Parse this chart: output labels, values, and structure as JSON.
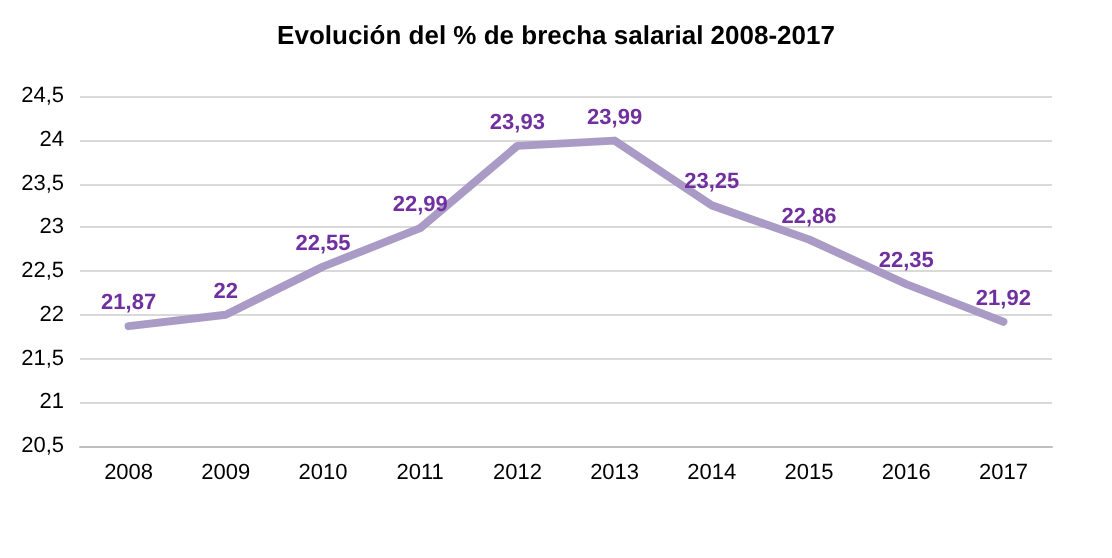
{
  "chart_data": {
    "type": "line",
    "title": "Evolución del % de brecha salarial 2008-2017",
    "categories": [
      "2008",
      "2009",
      "2010",
      "2011",
      "2012",
      "2013",
      "2014",
      "2015",
      "2016",
      "2017"
    ],
    "series": [
      {
        "color": "#a99bc6",
        "values": [
          21.87,
          22,
          22.55,
          22.99,
          23.93,
          23.99,
          23.25,
          22.86,
          22.35,
          21.92
        ],
        "value_labels": [
          "21,87",
          "22",
          "22,55",
          "22,99",
          "23,93",
          "23,99",
          "23,25",
          "22,86",
          "22,35",
          "21,92"
        ]
      }
    ],
    "ylim": [
      20.5,
      24.5
    ],
    "yticks": [
      {
        "value": 20.5,
        "label": "20,5"
      },
      21,
      {
        "value": 21.5,
        "label": "21,5"
      },
      22,
      {
        "value": 22.5,
        "label": "22,5"
      },
      23,
      {
        "value": 23.5,
        "label": "23,5"
      },
      24,
      {
        "value": 24.5,
        "label": "24,5"
      }
    ],
    "grid": "y",
    "marker": "none",
    "line_style": "solid"
  }
}
